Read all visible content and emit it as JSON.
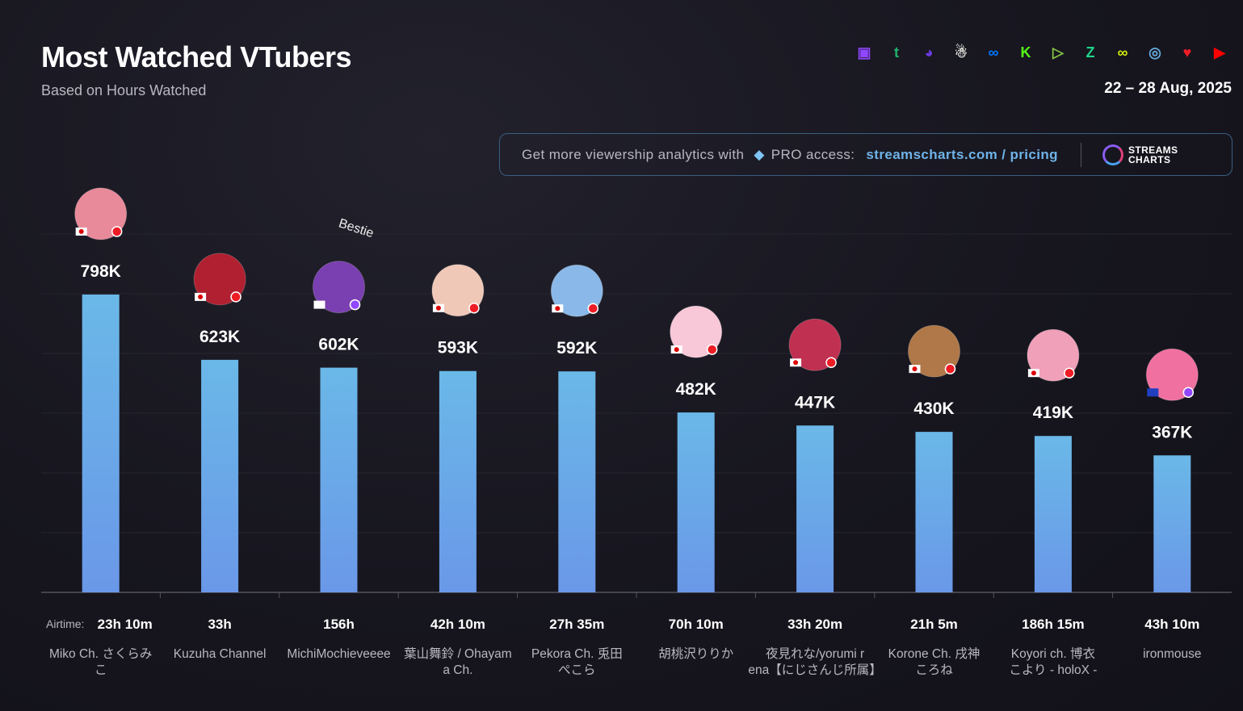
{
  "header": {
    "title": "Most Watched VTubers",
    "subtitle": "Based on Hours Watched",
    "date": "22 – 28 Aug, 2025"
  },
  "platform_icons": [
    {
      "name": "twitch-icon",
      "color": "#9146ff",
      "glyph": "▣"
    },
    {
      "name": "trovo-icon",
      "color": "#21b36c",
      "glyph": "t"
    },
    {
      "name": "dlive-icon",
      "color": "#6a3be0",
      "glyph": "◕"
    },
    {
      "name": "bigo-icon",
      "color": "#e8e6e0",
      "glyph": "☃"
    },
    {
      "name": "vk-play-icon",
      "color": "#0077ff",
      "glyph": "∞"
    },
    {
      "name": "kick-icon",
      "color": "#53fc18",
      "glyph": "K"
    },
    {
      "name": "rumble-icon",
      "color": "#85c742",
      "glyph": "▷"
    },
    {
      "name": "zhanqi-icon",
      "color": "#1fd68a",
      "glyph": "Z"
    },
    {
      "name": "infinite-icon",
      "color": "#d4f00a",
      "glyph": "∞"
    },
    {
      "name": "steam-icon",
      "color": "#66aadd",
      "glyph": "◎"
    },
    {
      "name": "heart-icon",
      "color": "#ee1c25",
      "glyph": "♥"
    },
    {
      "name": "youtube-icon",
      "color": "#ff0000",
      "glyph": "▶"
    }
  ],
  "promo": {
    "text": "Get more viewership analytics with",
    "pro": "PRO access:",
    "link": "streamscharts.com / pricing",
    "logo_line1": "STREAMS",
    "logo_line2": "CHARTS"
  },
  "chart_data": {
    "type": "bar",
    "title": "Most Watched VTubers",
    "ylabel": "Hours Watched",
    "ylim": [
      0,
      960000
    ],
    "grid": true,
    "airtime_label": "Airtime:",
    "categories": [
      "Miko Ch. さくらみこ",
      "Kuzuha Channel",
      "MichiMochieveeee",
      "葉山舞鈴 / Ohayama Ch.",
      "Pekora Ch. 兎田ぺこら",
      "胡桃沢りりか",
      "夜見れな/yorumi rena【にじさんじ所属】",
      "Korone Ch. 戌神ころね",
      "Koyori ch. 博衣こより - holoX -",
      "ironmouse"
    ],
    "values": [
      798000,
      623000,
      602000,
      593000,
      592000,
      482000,
      447000,
      430000,
      419000,
      367000
    ],
    "labels": [
      "798K",
      "623K",
      "602K",
      "593K",
      "592K",
      "482K",
      "447K",
      "430K",
      "419K",
      "367K"
    ],
    "airtime": [
      "23h 10m",
      "33h",
      "156h",
      "42h 10m",
      "27h 35m",
      "70h 10m",
      "33h 20m",
      "21h 5m",
      "186h 15m",
      "43h 10m"
    ],
    "avatar_colors": [
      "#e88a9a",
      "#b02030",
      "#7a3fb0",
      "#f0c8b8",
      "#8ab8e8",
      "#f8c8d8",
      "#c03050",
      "#b07848",
      "#f0a0b8",
      "#f070a0"
    ],
    "flags": [
      "jp",
      "jp",
      "tw",
      "jp",
      "jp",
      "jp",
      "jp",
      "jp",
      "jp",
      "pr"
    ],
    "annotation": "Bestie"
  }
}
